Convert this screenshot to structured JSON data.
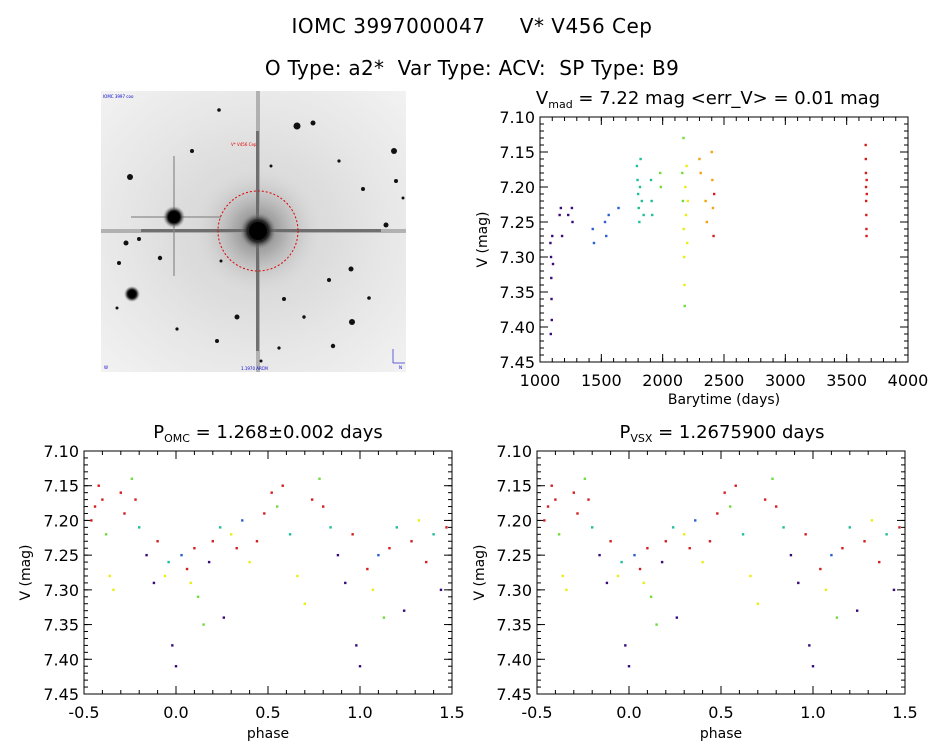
{
  "header": {
    "title": "IOMC 3997000047     V* V456 Cep",
    "subtitle": "O Type: a2*  Var Type: ACV:  SP Type: B9"
  },
  "image_panel": {
    "label_top_left": "IOMC 3997 coo",
    "label_center": "V* V456 Cep",
    "label_bottom_center": "1.1970 ARCM",
    "label_bottom_left": "W",
    "label_bottom_right": "N"
  },
  "colors": {
    "axis": "#000000",
    "circle": "#e00000",
    "season_palette": [
      "#3a0a7a",
      "#2b5fd0",
      "#1fbf9a",
      "#6fdc3c",
      "#e9ee10",
      "#f2a30d",
      "#d41e1e"
    ]
  },
  "chart_data": [
    {
      "type": "scatter",
      "title": "V<sub>mad</sub> = 7.22 mag <err_V> = 0.01 mag",
      "title_main": "V",
      "title_sub": "mad",
      "title_rest": " = 7.22 mag <err_V> = 0.01 mag",
      "xlabel": "Barytime (days)",
      "ylabel": "V (mag)",
      "xlim": [
        1000,
        4000
      ],
      "ylim": [
        7.1,
        7.45
      ],
      "y_inverted": true,
      "xticks": [
        1000,
        1500,
        2000,
        2500,
        3000,
        3500,
        4000
      ],
      "yticks": [
        7.1,
        7.15,
        7.2,
        7.25,
        7.3,
        7.35,
        7.4,
        7.45
      ],
      "points": [
        {
          "x": 1085,
          "y": 7.28,
          "c": 0
        },
        {
          "x": 1090,
          "y": 7.3,
          "c": 0
        },
        {
          "x": 1092,
          "y": 7.33,
          "c": 0
        },
        {
          "x": 1094,
          "y": 7.36,
          "c": 0
        },
        {
          "x": 1096,
          "y": 7.39,
          "c": 0
        },
        {
          "x": 1088,
          "y": 7.41,
          "c": 0
        },
        {
          "x": 1100,
          "y": 7.27,
          "c": 0
        },
        {
          "x": 1106,
          "y": 7.31,
          "c": 0
        },
        {
          "x": 1160,
          "y": 7.24,
          "c": 0
        },
        {
          "x": 1170,
          "y": 7.23,
          "c": 0
        },
        {
          "x": 1180,
          "y": 7.27,
          "c": 0
        },
        {
          "x": 1230,
          "y": 7.24,
          "c": 0
        },
        {
          "x": 1260,
          "y": 7.23,
          "c": 0
        },
        {
          "x": 1265,
          "y": 7.25,
          "c": 0
        },
        {
          "x": 1430,
          "y": 7.26,
          "c": 1
        },
        {
          "x": 1440,
          "y": 7.28,
          "c": 1
        },
        {
          "x": 1530,
          "y": 7.25,
          "c": 1
        },
        {
          "x": 1540,
          "y": 7.27,
          "c": 1
        },
        {
          "x": 1560,
          "y": 7.24,
          "c": 1
        },
        {
          "x": 1640,
          "y": 7.23,
          "c": 1
        },
        {
          "x": 1790,
          "y": 7.17,
          "c": 2
        },
        {
          "x": 1795,
          "y": 7.19,
          "c": 2
        },
        {
          "x": 1800,
          "y": 7.21,
          "c": 2
        },
        {
          "x": 1805,
          "y": 7.23,
          "c": 2
        },
        {
          "x": 1810,
          "y": 7.25,
          "c": 2
        },
        {
          "x": 1815,
          "y": 7.2,
          "c": 2
        },
        {
          "x": 1820,
          "y": 7.16,
          "c": 2
        },
        {
          "x": 1830,
          "y": 7.22,
          "c": 2
        },
        {
          "x": 1845,
          "y": 7.24,
          "c": 2
        },
        {
          "x": 1905,
          "y": 7.19,
          "c": 2
        },
        {
          "x": 1910,
          "y": 7.22,
          "c": 2
        },
        {
          "x": 1915,
          "y": 7.24,
          "c": 2
        },
        {
          "x": 1980,
          "y": 7.18,
          "c": 3
        },
        {
          "x": 1985,
          "y": 7.2,
          "c": 3
        },
        {
          "x": 2160,
          "y": 7.18,
          "c": 3
        },
        {
          "x": 2165,
          "y": 7.22,
          "c": 3
        },
        {
          "x": 2170,
          "y": 7.13,
          "c": 3
        },
        {
          "x": 2172,
          "y": 7.26,
          "c": 4
        },
        {
          "x": 2175,
          "y": 7.3,
          "c": 4
        },
        {
          "x": 2178,
          "y": 7.34,
          "c": 4
        },
        {
          "x": 2180,
          "y": 7.37,
          "c": 3
        },
        {
          "x": 2185,
          "y": 7.2,
          "c": 4
        },
        {
          "x": 2190,
          "y": 7.24,
          "c": 4
        },
        {
          "x": 2195,
          "y": 7.17,
          "c": 4
        },
        {
          "x": 2200,
          "y": 7.28,
          "c": 4
        },
        {
          "x": 2205,
          "y": 7.22,
          "c": 4
        },
        {
          "x": 2300,
          "y": 7.16,
          "c": 5
        },
        {
          "x": 2310,
          "y": 7.18,
          "c": 5
        },
        {
          "x": 2350,
          "y": 7.22,
          "c": 5
        },
        {
          "x": 2360,
          "y": 7.25,
          "c": 5
        },
        {
          "x": 2400,
          "y": 7.15,
          "c": 5
        },
        {
          "x": 2405,
          "y": 7.19,
          "c": 5
        },
        {
          "x": 2410,
          "y": 7.23,
          "c": 5
        },
        {
          "x": 2415,
          "y": 7.27,
          "c": 6
        },
        {
          "x": 2420,
          "y": 7.21,
          "c": 6
        },
        {
          "x": 3655,
          "y": 7.14,
          "c": 6
        },
        {
          "x": 3656,
          "y": 7.16,
          "c": 6
        },
        {
          "x": 3657,
          "y": 7.18,
          "c": 6
        },
        {
          "x": 3658,
          "y": 7.2,
          "c": 6
        },
        {
          "x": 3659,
          "y": 7.22,
          "c": 6
        },
        {
          "x": 3660,
          "y": 7.24,
          "c": 6
        },
        {
          "x": 3661,
          "y": 7.26,
          "c": 6
        },
        {
          "x": 3662,
          "y": 7.27,
          "c": 6
        },
        {
          "x": 3663,
          "y": 7.19,
          "c": 6
        },
        {
          "x": 3664,
          "y": 7.21,
          "c": 6
        }
      ]
    },
    {
      "type": "scatter",
      "title": "P<sub>OMC</sub> = 1.268±0.002 days",
      "title_main": "P",
      "title_sub": "OMC",
      "title_rest": " = 1.268±0.002 days",
      "xlabel": "phase",
      "ylabel": "V (mag)",
      "xlim": [
        -0.5,
        1.5
      ],
      "ylim": [
        7.1,
        7.45
      ],
      "y_inverted": true,
      "xticks": [
        -0.5,
        0.0,
        0.5,
        1.0,
        1.5
      ],
      "xticklabels": [
        "-0.5",
        "0.0",
        "0.5",
        "1.0",
        "1.5"
      ],
      "yticks": [
        7.1,
        7.15,
        7.2,
        7.25,
        7.3,
        7.35,
        7.4,
        7.45
      ],
      "points": [
        {
          "x": -0.46,
          "y": 7.2,
          "c": 6
        },
        {
          "x": -0.44,
          "y": 7.18,
          "c": 6
        },
        {
          "x": -0.42,
          "y": 7.15,
          "c": 6
        },
        {
          "x": -0.4,
          "y": 7.17,
          "c": 6
        },
        {
          "x": -0.38,
          "y": 7.22,
          "c": 3
        },
        {
          "x": -0.36,
          "y": 7.28,
          "c": 4
        },
        {
          "x": -0.34,
          "y": 7.3,
          "c": 4
        },
        {
          "x": -0.3,
          "y": 7.16,
          "c": 6
        },
        {
          "x": -0.28,
          "y": 7.19,
          "c": 6
        },
        {
          "x": -0.24,
          "y": 7.14,
          "c": 3
        },
        {
          "x": -0.22,
          "y": 7.17,
          "c": 6
        },
        {
          "x": -0.2,
          "y": 7.21,
          "c": 2
        },
        {
          "x": -0.16,
          "y": 7.25,
          "c": 0
        },
        {
          "x": -0.12,
          "y": 7.29,
          "c": 0
        },
        {
          "x": -0.1,
          "y": 7.23,
          "c": 6
        },
        {
          "x": -0.06,
          "y": 7.28,
          "c": 4
        },
        {
          "x": -0.04,
          "y": 7.26,
          "c": 2
        },
        {
          "x": -0.02,
          "y": 7.38,
          "c": 0
        },
        {
          "x": 0.0,
          "y": 7.41,
          "c": 0
        },
        {
          "x": 0.03,
          "y": 7.25,
          "c": 1
        },
        {
          "x": 0.06,
          "y": 7.27,
          "c": 6
        },
        {
          "x": 0.08,
          "y": 7.29,
          "c": 4
        },
        {
          "x": 0.1,
          "y": 7.24,
          "c": 6
        },
        {
          "x": 0.12,
          "y": 7.31,
          "c": 3
        },
        {
          "x": 0.15,
          "y": 7.35,
          "c": 3
        },
        {
          "x": 0.18,
          "y": 7.26,
          "c": 0
        },
        {
          "x": 0.2,
          "y": 7.23,
          "c": 6
        },
        {
          "x": 0.24,
          "y": 7.21,
          "c": 2
        },
        {
          "x": 0.26,
          "y": 7.34,
          "c": 0
        },
        {
          "x": 0.3,
          "y": 7.22,
          "c": 4
        },
        {
          "x": 0.33,
          "y": 7.24,
          "c": 6
        },
        {
          "x": 0.36,
          "y": 7.2,
          "c": 1
        },
        {
          "x": 0.4,
          "y": 7.26,
          "c": 4
        },
        {
          "x": 0.44,
          "y": 7.23,
          "c": 6
        },
        {
          "x": 0.48,
          "y": 7.19,
          "c": 6
        },
        {
          "x": 0.52,
          "y": 7.16,
          "c": 6
        },
        {
          "x": 0.55,
          "y": 7.18,
          "c": 3
        },
        {
          "x": 0.58,
          "y": 7.15,
          "c": 6
        },
        {
          "x": 0.62,
          "y": 7.22,
          "c": 2
        },
        {
          "x": 0.66,
          "y": 7.28,
          "c": 4
        },
        {
          "x": 0.7,
          "y": 7.32,
          "c": 4
        },
        {
          "x": 0.74,
          "y": 7.17,
          "c": 6
        },
        {
          "x": 0.78,
          "y": 7.14,
          "c": 3
        },
        {
          "x": 0.8,
          "y": 7.18,
          "c": 6
        },
        {
          "x": 0.84,
          "y": 7.21,
          "c": 2
        },
        {
          "x": 0.88,
          "y": 7.25,
          "c": 0
        },
        {
          "x": 0.92,
          "y": 7.29,
          "c": 0
        },
        {
          "x": 0.96,
          "y": 7.22,
          "c": 6
        },
        {
          "x": 0.98,
          "y": 7.38,
          "c": 0
        },
        {
          "x": 1.0,
          "y": 7.41,
          "c": 0
        },
        {
          "x": 1.04,
          "y": 7.27,
          "c": 6
        },
        {
          "x": 1.07,
          "y": 7.3,
          "c": 4
        },
        {
          "x": 1.1,
          "y": 7.25,
          "c": 1
        },
        {
          "x": 1.13,
          "y": 7.34,
          "c": 3
        },
        {
          "x": 1.16,
          "y": 7.24,
          "c": 6
        },
        {
          "x": 1.2,
          "y": 7.21,
          "c": 2
        },
        {
          "x": 1.24,
          "y": 7.33,
          "c": 0
        },
        {
          "x": 1.28,
          "y": 7.23,
          "c": 6
        },
        {
          "x": 1.32,
          "y": 7.2,
          "c": 4
        },
        {
          "x": 1.36,
          "y": 7.26,
          "c": 6
        },
        {
          "x": 1.4,
          "y": 7.22,
          "c": 2
        },
        {
          "x": 1.44,
          "y": 7.3,
          "c": 0
        },
        {
          "x": 1.47,
          "y": 7.21,
          "c": 6
        }
      ]
    },
    {
      "type": "scatter",
      "title": "P<sub>VSX</sub> = 1.2675900 days",
      "title_main": "P",
      "title_sub": "VSX",
      "title_rest": " = 1.2675900 days",
      "xlabel": "phase",
      "ylabel": "V (mag)",
      "xlim": [
        -0.5,
        1.5
      ],
      "ylim": [
        7.1,
        7.45
      ],
      "y_inverted": true,
      "xticks": [
        -0.5,
        0.0,
        0.5,
        1.0,
        1.5
      ],
      "xticklabels": [
        "-0.5",
        "0.0",
        "0.5",
        "1.0",
        "1.5"
      ],
      "yticks": [
        7.1,
        7.15,
        7.2,
        7.25,
        7.3,
        7.35,
        7.4,
        7.45
      ],
      "points": [
        {
          "x": -0.46,
          "y": 7.2,
          "c": 6
        },
        {
          "x": -0.44,
          "y": 7.18,
          "c": 6
        },
        {
          "x": -0.42,
          "y": 7.15,
          "c": 6
        },
        {
          "x": -0.4,
          "y": 7.17,
          "c": 6
        },
        {
          "x": -0.38,
          "y": 7.22,
          "c": 3
        },
        {
          "x": -0.36,
          "y": 7.28,
          "c": 4
        },
        {
          "x": -0.34,
          "y": 7.3,
          "c": 4
        },
        {
          "x": -0.3,
          "y": 7.16,
          "c": 6
        },
        {
          "x": -0.28,
          "y": 7.19,
          "c": 6
        },
        {
          "x": -0.24,
          "y": 7.14,
          "c": 3
        },
        {
          "x": -0.22,
          "y": 7.17,
          "c": 6
        },
        {
          "x": -0.2,
          "y": 7.21,
          "c": 2
        },
        {
          "x": -0.16,
          "y": 7.25,
          "c": 0
        },
        {
          "x": -0.12,
          "y": 7.29,
          "c": 0
        },
        {
          "x": -0.1,
          "y": 7.23,
          "c": 6
        },
        {
          "x": -0.06,
          "y": 7.28,
          "c": 4
        },
        {
          "x": -0.04,
          "y": 7.26,
          "c": 2
        },
        {
          "x": -0.02,
          "y": 7.38,
          "c": 0
        },
        {
          "x": 0.0,
          "y": 7.41,
          "c": 0
        },
        {
          "x": 0.03,
          "y": 7.25,
          "c": 1
        },
        {
          "x": 0.06,
          "y": 7.27,
          "c": 6
        },
        {
          "x": 0.08,
          "y": 7.29,
          "c": 4
        },
        {
          "x": 0.1,
          "y": 7.24,
          "c": 6
        },
        {
          "x": 0.12,
          "y": 7.31,
          "c": 3
        },
        {
          "x": 0.15,
          "y": 7.35,
          "c": 3
        },
        {
          "x": 0.18,
          "y": 7.26,
          "c": 0
        },
        {
          "x": 0.2,
          "y": 7.23,
          "c": 6
        },
        {
          "x": 0.24,
          "y": 7.21,
          "c": 2
        },
        {
          "x": 0.26,
          "y": 7.34,
          "c": 0
        },
        {
          "x": 0.3,
          "y": 7.22,
          "c": 4
        },
        {
          "x": 0.33,
          "y": 7.24,
          "c": 6
        },
        {
          "x": 0.36,
          "y": 7.2,
          "c": 1
        },
        {
          "x": 0.4,
          "y": 7.26,
          "c": 4
        },
        {
          "x": 0.44,
          "y": 7.23,
          "c": 6
        },
        {
          "x": 0.48,
          "y": 7.19,
          "c": 6
        },
        {
          "x": 0.52,
          "y": 7.16,
          "c": 6
        },
        {
          "x": 0.55,
          "y": 7.18,
          "c": 3
        },
        {
          "x": 0.58,
          "y": 7.15,
          "c": 6
        },
        {
          "x": 0.62,
          "y": 7.22,
          "c": 2
        },
        {
          "x": 0.66,
          "y": 7.28,
          "c": 4
        },
        {
          "x": 0.7,
          "y": 7.32,
          "c": 4
        },
        {
          "x": 0.74,
          "y": 7.17,
          "c": 6
        },
        {
          "x": 0.78,
          "y": 7.14,
          "c": 3
        },
        {
          "x": 0.8,
          "y": 7.18,
          "c": 6
        },
        {
          "x": 0.84,
          "y": 7.21,
          "c": 2
        },
        {
          "x": 0.88,
          "y": 7.25,
          "c": 0
        },
        {
          "x": 0.92,
          "y": 7.29,
          "c": 0
        },
        {
          "x": 0.96,
          "y": 7.22,
          "c": 6
        },
        {
          "x": 0.98,
          "y": 7.38,
          "c": 0
        },
        {
          "x": 1.0,
          "y": 7.41,
          "c": 0
        },
        {
          "x": 1.04,
          "y": 7.27,
          "c": 6
        },
        {
          "x": 1.07,
          "y": 7.3,
          "c": 4
        },
        {
          "x": 1.1,
          "y": 7.25,
          "c": 1
        },
        {
          "x": 1.13,
          "y": 7.34,
          "c": 3
        },
        {
          "x": 1.16,
          "y": 7.24,
          "c": 6
        },
        {
          "x": 1.2,
          "y": 7.21,
          "c": 2
        },
        {
          "x": 1.24,
          "y": 7.33,
          "c": 0
        },
        {
          "x": 1.28,
          "y": 7.23,
          "c": 6
        },
        {
          "x": 1.32,
          "y": 7.2,
          "c": 4
        },
        {
          "x": 1.36,
          "y": 7.26,
          "c": 6
        },
        {
          "x": 1.4,
          "y": 7.22,
          "c": 2
        },
        {
          "x": 1.44,
          "y": 7.3,
          "c": 0
        },
        {
          "x": 1.47,
          "y": 7.21,
          "c": 6
        }
      ]
    }
  ]
}
